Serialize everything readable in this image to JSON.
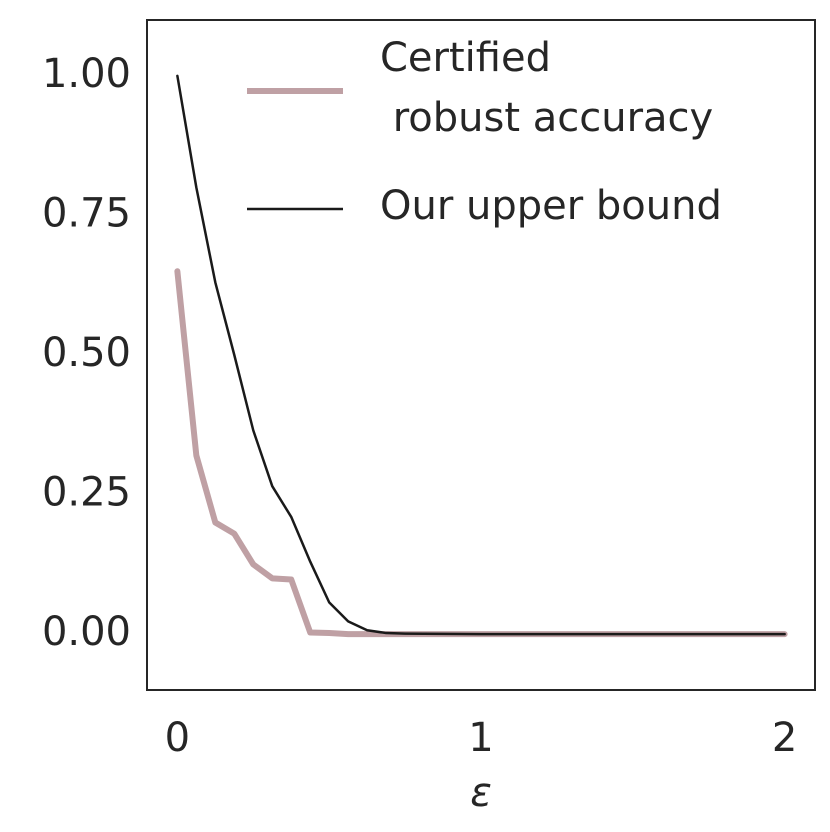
{
  "chart_data": {
    "type": "line",
    "xlabel": "ε",
    "x": [
      0,
      0.0625,
      0.125,
      0.1875,
      0.25,
      0.3125,
      0.375,
      0.4375,
      0.5,
      0.5625,
      0.625,
      0.6875,
      0.75,
      1,
      1.5,
      2
    ],
    "series": [
      {
        "name": "Certified\n robust accuracy",
        "color": "#bfa0a4",
        "width": 6,
        "values": [
          0.65,
          0.32,
          0.2,
          0.18,
          0.125,
          0.1,
          0.098,
          0.003,
          0.002,
          0,
          0,
          0,
          0,
          0,
          0,
          0
        ]
      },
      {
        "name": "Our upper bound",
        "color": "#1a1a1a",
        "width": 2.5,
        "values": [
          1.0,
          0.8,
          0.63,
          0.5,
          0.365,
          0.265,
          0.21,
          0.13,
          0.057,
          0.023,
          0.007,
          0.002,
          0.001,
          0,
          0,
          0
        ]
      }
    ],
    "xlim": [
      -0.1,
      2.1
    ],
    "ylim": [
      -0.1,
      1.1
    ],
    "xticks": [
      0,
      1,
      2
    ],
    "yticks": [
      {
        "value": 0,
        "label": "0.00"
      },
      {
        "value": 0.25,
        "label": "0.25"
      },
      {
        "value": 0.5,
        "label": "0.50"
      },
      {
        "value": 0.75,
        "label": "0.75"
      },
      {
        "value": 1,
        "label": "1.00"
      }
    ],
    "grid": false,
    "legend": "upper right"
  }
}
